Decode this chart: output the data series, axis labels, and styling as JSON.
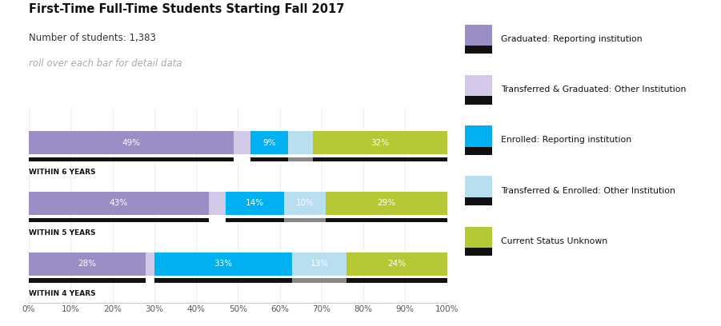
{
  "title": "First-Time Full-Time Students Starting Fall 2017",
  "subtitle": "Number of students: 1,383",
  "note": "roll over each bar for detail data",
  "rows": [
    {
      "label": "WITHIN 6 YEARS",
      "segments": [
        49,
        4,
        9,
        6,
        32
      ],
      "labels": [
        "49%",
        "",
        "9%",
        "",
        "32%"
      ]
    },
    {
      "label": "WITHIN 5 YEARS",
      "segments": [
        43,
        4,
        14,
        10,
        29
      ],
      "labels": [
        "43%",
        "",
        "14%",
        "10%",
        "29%"
      ]
    },
    {
      "label": "WITHIN 4 YEARS",
      "segments": [
        28,
        2,
        33,
        13,
        24
      ],
      "labels": [
        "28%",
        "",
        "33%",
        "13%",
        "24%"
      ]
    }
  ],
  "colors": [
    "#9b8ec4",
    "#d4c8e8",
    "#00b0f0",
    "#b8dff0",
    "#b5c935"
  ],
  "black_color": "#111111",
  "white_color": "#ffffff",
  "legend_labels": [
    "Graduated: Reporting institution",
    "Transferred & Graduated: Other Institution",
    "Enrolled: Reporting institution",
    "Transferred & Enrolled: Other Institution",
    "Current Status Unknown"
  ],
  "legend_colors": [
    "#9b8ec4",
    "#d4c8e8",
    "#00b0f0",
    "#b8dff0",
    "#b5c935"
  ],
  "xticks": [
    0,
    10,
    20,
    30,
    40,
    50,
    60,
    70,
    80,
    90,
    100
  ],
  "xtick_labels": [
    "0%",
    "10%",
    "20%",
    "30%",
    "40%",
    "50%",
    "60%",
    "70%",
    "80%",
    "90%",
    "100%"
  ]
}
